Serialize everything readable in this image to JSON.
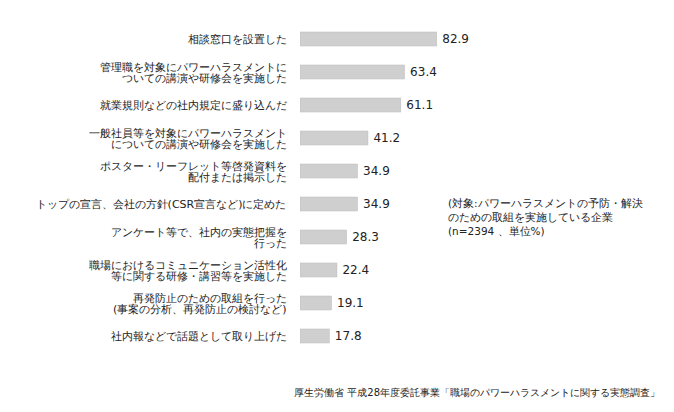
{
  "chart_data": {
    "type": "bar",
    "orientation": "horizontal",
    "categories": [
      "相談窓口を設置した",
      "管理職を対象にパワーハラスメントに\nついての講演や研修会を実施した",
      "就業規則などの社内規定に盛り込んだ",
      "一般社員等を対象にパワーハラスメント\nについての講演や研修会を実施した",
      "ポスター・リーフレット等啓発資料を\n配付または掲示した",
      "トップの宣言、会社の方針(CSR宣言など)に定めた",
      "アンケート等で、社内の実態把握を\n行った",
      "職場におけるコミュニケーション活性化\n等に関する研修・講習等を実施した",
      "再発防止のための取組を行った\n(事案の分析、再発防止の検討など)",
      "社内報などで話題として取り上げた"
    ],
    "values": [
      82.9,
      63.4,
      61.1,
      41.2,
      34.9,
      34.9,
      28.3,
      22.4,
      19.1,
      17.8
    ],
    "color": "#cfcfcf",
    "xlim": [
      0,
      100
    ],
    "data_labels": true,
    "tick_labels": "y",
    "grid": false,
    "annotation": "(対象:パワーハラスメントの予防・解決\nのための取組を実施している企業\n(n=2394 、単位%)",
    "caption": "厚生労働省 平成28年度委託事業「職場のパワーハラスメントに関する実態調査」"
  }
}
